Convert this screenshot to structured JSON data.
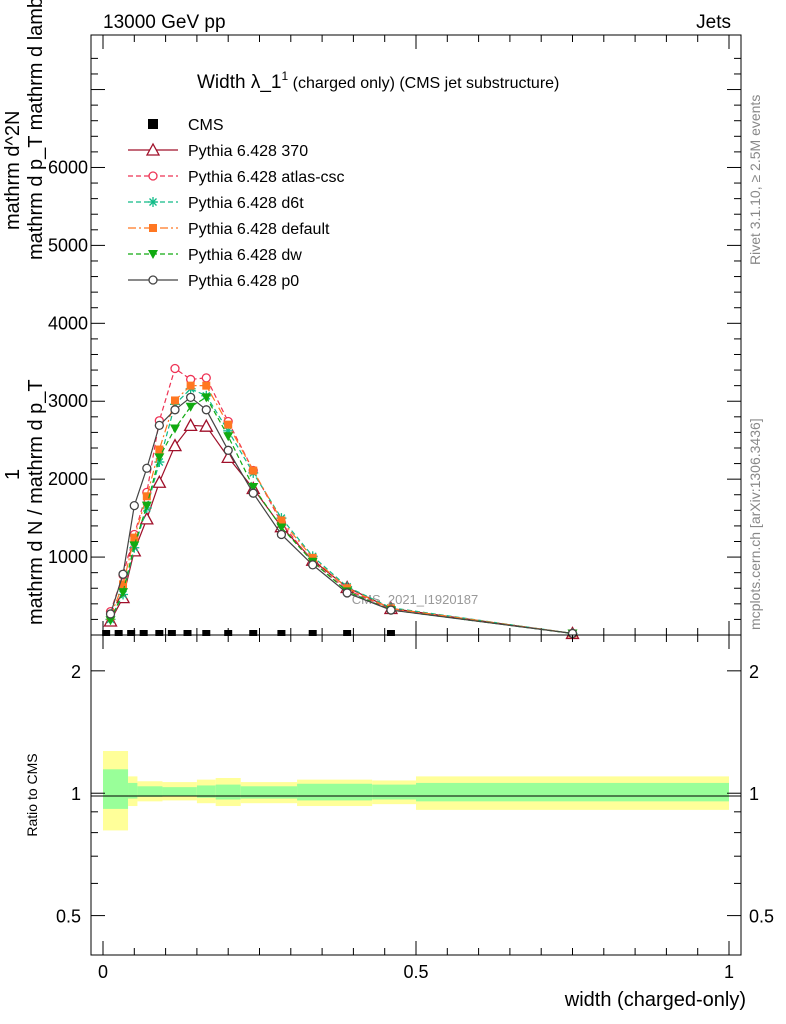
{
  "header": {
    "left": "13000 GeV pp",
    "right": "Jets"
  },
  "side": {
    "rivet": "Rivet 3.1.10, ≥ 2.5M events",
    "mcplots": "mcplots.cern.ch [arXiv:1306.3436]"
  },
  "watermark": "CMS_2021_I1920187",
  "main": {
    "title_main": "Width λ_1",
    "title_sup": "1",
    "title_rest": " (charged only) (CMS jet substructure)",
    "ylabel": {
      "top": "1",
      "denom": "mathrm d N / mathrm d p_T",
      "num": "mathrm d^2N",
      "den2": "mathrm d p_T mathrm d lambda"
    }
  },
  "ratio": {
    "ylabel": "Ratio to CMS"
  },
  "xaxis": {
    "label": "width (charged-only)"
  },
  "chart_data": {
    "type": "line",
    "title": "Width λ_1^1 (charged only) (CMS jet substructure)",
    "xlabel": "width (charged-only)",
    "xlim": [
      0,
      1
    ],
    "ylim": [
      0,
      7700
    ],
    "yticks": [
      1000,
      2000,
      3000,
      4000,
      5000,
      6000
    ],
    "ytick_labels": [
      "1000",
      "2000",
      "3000",
      "4000",
      "5000",
      "6000"
    ],
    "xticks": [
      0,
      0.5,
      1
    ],
    "xtick_labels": [
      "0",
      "0.5",
      "1"
    ],
    "legend_position": "top-left",
    "cms": {
      "name": "CMS",
      "x": [
        0.005,
        0.025,
        0.045,
        0.065,
        0.09,
        0.11,
        0.135,
        0.165,
        0.2,
        0.24,
        0.285,
        0.335,
        0.39,
        0.46
      ],
      "y": [
        0,
        0,
        0,
        0,
        0,
        0,
        0,
        0,
        0,
        0,
        0,
        0,
        0,
        0
      ]
    },
    "series": [
      {
        "name": "Pythia 6.428 370",
        "color": "#a0102a",
        "dash": "",
        "marker": "triangle-open",
        "x": [
          0.012,
          0.032,
          0.05,
          0.07,
          0.09,
          0.115,
          0.14,
          0.165,
          0.2,
          0.24,
          0.285,
          0.335,
          0.39,
          0.46,
          0.75
        ],
        "y": [
          180,
          480,
          1080,
          1490,
          1960,
          2430,
          2690,
          2680,
          2280,
          1880,
          1390,
          960,
          610,
          340,
          20
        ]
      },
      {
        "name": "Pythia 6.428 atlas-csc",
        "color": "#ee3355",
        "dash": "5,3",
        "marker": "circle-open",
        "x": [
          0.012,
          0.032,
          0.05,
          0.07,
          0.09,
          0.115,
          0.14,
          0.165,
          0.2,
          0.24,
          0.285,
          0.335,
          0.39,
          0.46,
          0.75
        ],
        "y": [
          300,
          770,
          1290,
          1830,
          2750,
          3420,
          3280,
          3300,
          2740,
          2110,
          1440,
          940,
          580,
          330,
          20
        ]
      },
      {
        "name": "Pythia 6.428 d6t",
        "color": "#11bb88",
        "dash": "5,3",
        "marker": "star",
        "x": [
          0.012,
          0.032,
          0.05,
          0.07,
          0.09,
          0.115,
          0.14,
          0.165,
          0.2,
          0.24,
          0.285,
          0.335,
          0.39,
          0.46,
          0.75
        ],
        "y": [
          200,
          520,
          1120,
          1630,
          2220,
          2960,
          3160,
          3070,
          2620,
          2080,
          1500,
          1010,
          620,
          350,
          20
        ]
      },
      {
        "name": "Pythia 6.428 default",
        "color": "#ff7722",
        "dash": "8,3,2,3",
        "marker": "square",
        "x": [
          0.012,
          0.032,
          0.05,
          0.07,
          0.09,
          0.115,
          0.14,
          0.165,
          0.2,
          0.24,
          0.285,
          0.335,
          0.39,
          0.46,
          0.75
        ],
        "y": [
          240,
          650,
          1250,
          1780,
          2380,
          3010,
          3200,
          3200,
          2700,
          2110,
          1470,
          990,
          600,
          340,
          20
        ]
      },
      {
        "name": "Pythia 6.428 dw",
        "color": "#11aa11",
        "dash": "5,3",
        "marker": "triangle-down",
        "x": [
          0.012,
          0.032,
          0.05,
          0.07,
          0.09,
          0.115,
          0.14,
          0.165,
          0.2,
          0.24,
          0.285,
          0.335,
          0.39,
          0.46,
          0.75
        ],
        "y": [
          190,
          550,
          1150,
          1660,
          2280,
          2650,
          2930,
          3050,
          2550,
          1900,
          1380,
          940,
          560,
          320,
          20
        ]
      },
      {
        "name": "Pythia 6.428 p0",
        "color": "#444444",
        "dash": "",
        "marker": "circle-open",
        "x": [
          0.012,
          0.032,
          0.05,
          0.07,
          0.09,
          0.115,
          0.14,
          0.165,
          0.2,
          0.24,
          0.285,
          0.335,
          0.39,
          0.46,
          0.75
        ],
        "y": [
          270,
          780,
          1660,
          2140,
          2690,
          2890,
          3050,
          2890,
          2370,
          1820,
          1290,
          900,
          540,
          320,
          20
        ]
      }
    ],
    "ratio": {
      "ylim": [
        0.4,
        2.45
      ],
      "yticks": [
        0.5,
        1,
        2
      ],
      "ytick_labels": [
        "0.5",
        "1",
        "2"
      ],
      "bands": [
        {
          "x0": 0.0,
          "x1": 0.04,
          "inner": [
            0.915,
            1.145
          ],
          "outer": [
            0.81,
            1.27
          ]
        },
        {
          "x0": 0.04,
          "x1": 0.055,
          "inner": [
            0.97,
            1.06
          ],
          "outer": [
            0.93,
            1.1
          ]
        },
        {
          "x0": 0.055,
          "x1": 0.095,
          "inner": [
            0.98,
            1.04
          ],
          "outer": [
            0.955,
            1.07
          ]
        },
        {
          "x0": 0.095,
          "x1": 0.15,
          "inner": [
            0.985,
            1.035
          ],
          "outer": [
            0.96,
            1.065
          ]
        },
        {
          "x0": 0.15,
          "x1": 0.18,
          "inner": [
            0.975,
            1.045
          ],
          "outer": [
            0.945,
            1.08
          ]
        },
        {
          "x0": 0.18,
          "x1": 0.22,
          "inner": [
            0.965,
            1.05
          ],
          "outer": [
            0.93,
            1.09
          ]
        },
        {
          "x0": 0.22,
          "x1": 0.31,
          "inner": [
            0.97,
            1.04
          ],
          "outer": [
            0.945,
            1.065
          ]
        },
        {
          "x0": 0.31,
          "x1": 0.43,
          "inner": [
            0.96,
            1.055
          ],
          "outer": [
            0.93,
            1.08
          ]
        },
        {
          "x0": 0.43,
          "x1": 0.5,
          "inner": [
            0.965,
            1.05
          ],
          "outer": [
            0.94,
            1.075
          ]
        },
        {
          "x0": 0.5,
          "x1": 1.0,
          "inner": [
            0.955,
            1.06
          ],
          "outer": [
            0.91,
            1.1
          ]
        }
      ]
    }
  }
}
